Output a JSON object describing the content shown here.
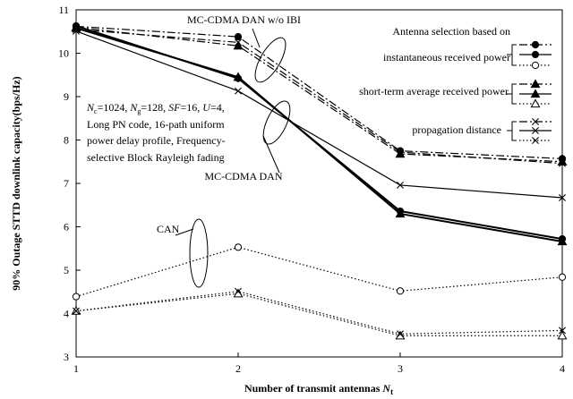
{
  "chart_data": {
    "type": "line",
    "xlabel": "Number of transmit antennas",
    "xlabel_var": "N",
    "xlabel_sub": "t",
    "ylabel": "90% Outage STTD downlink capacity(bps/Hz)",
    "x": [
      1,
      2,
      3,
      4
    ],
    "xlim": [
      1,
      4
    ],
    "ylim": [
      3,
      11
    ],
    "yticks": [
      3,
      4,
      5,
      6,
      7,
      8,
      9,
      10,
      11
    ],
    "grid": false,
    "legend": {
      "position": "top-right",
      "groups": [
        {
          "label_lines": [
            "Antenna selection  based on",
            "instantaneous received power"
          ],
          "marker": "circle"
        },
        {
          "label_lines": [
            "short-term average received power"
          ],
          "marker": "triangle"
        },
        {
          "label_lines": [
            "propagation distance"
          ],
          "marker": "x"
        }
      ]
    },
    "annotations": {
      "params_lines": [
        "N_c=1024,  N_g=128,  SF=16,  U=4,",
        "Long PN code,  16-path uniform",
        "power delay profile,    Frequency-",
        "selective Block Rayleigh fading"
      ],
      "groups": {
        "ibi": "MC-CDMA DAN w/o IBI",
        "dan": "MC-CDMA DAN",
        "can": "CAN"
      }
    },
    "series": [
      {
        "group": "ibi",
        "marker": "circle",
        "filled": true,
        "dash": "dashdot",
        "values": [
          10.62,
          10.38,
          7.75,
          7.57
        ]
      },
      {
        "group": "ibi",
        "marker": "triangle",
        "filled": true,
        "dash": "dashdot",
        "values": [
          10.6,
          10.17,
          7.68,
          7.5
        ]
      },
      {
        "group": "ibi",
        "marker": "x",
        "filled": false,
        "dash": "dashdot",
        "values": [
          10.55,
          10.25,
          7.72,
          7.46
        ]
      },
      {
        "group": "dan",
        "marker": "circle",
        "filled": true,
        "dash": "solid",
        "values": [
          10.63,
          9.42,
          6.36,
          5.72
        ]
      },
      {
        "group": "dan",
        "marker": "triangle",
        "filled": true,
        "dash": "solid",
        "values": [
          10.58,
          9.45,
          6.3,
          5.66
        ]
      },
      {
        "group": "dan",
        "marker": "x",
        "filled": false,
        "dash": "solid",
        "values": [
          10.51,
          9.13,
          6.96,
          6.67
        ]
      },
      {
        "group": "can",
        "marker": "circle",
        "filled": false,
        "dash": "dotted",
        "values": [
          4.39,
          5.53,
          4.52,
          4.84
        ]
      },
      {
        "group": "can",
        "marker": "triangle",
        "filled": false,
        "dash": "dotted",
        "values": [
          4.06,
          4.46,
          3.49,
          3.49
        ]
      },
      {
        "group": "can",
        "marker": "x",
        "filled": false,
        "dash": "dotted",
        "values": [
          4.06,
          4.51,
          3.53,
          3.61
        ]
      }
    ]
  }
}
